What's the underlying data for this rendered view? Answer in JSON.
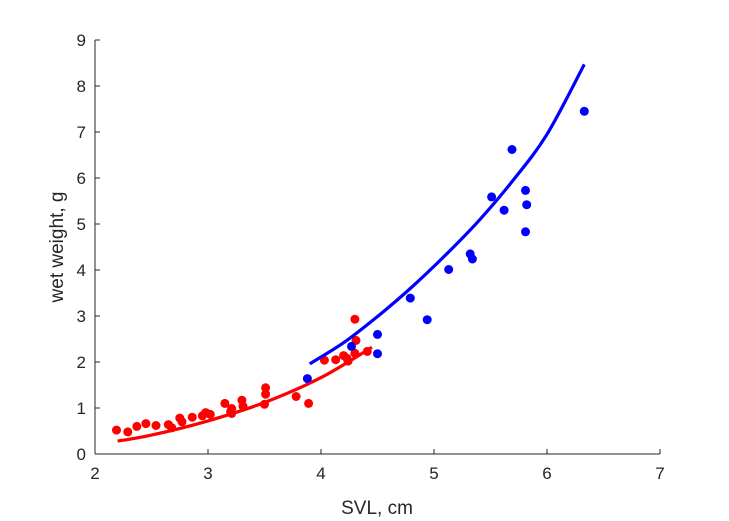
{
  "chart_data": {
    "type": "scatter",
    "title": "",
    "xlabel": "SVL, cm",
    "ylabel": "wet weight, g",
    "xlim": [
      2,
      7
    ],
    "ylim": [
      0,
      9
    ],
    "xticks": [
      "2",
      "3",
      "4",
      "5",
      "6",
      "7"
    ],
    "yticks": [
      "0",
      "1",
      "2",
      "3",
      "4",
      "5",
      "6",
      "7",
      "8",
      "9"
    ],
    "grid": false,
    "legend": "none",
    "series": [
      {
        "color": "#ff0000",
        "points": [
          [
            2.19,
            0.52
          ],
          [
            2.29,
            0.48
          ],
          [
            2.37,
            0.6
          ],
          [
            2.45,
            0.66
          ],
          [
            2.54,
            0.62
          ],
          [
            2.65,
            0.64
          ],
          [
            2.68,
            0.57
          ],
          [
            2.75,
            0.78
          ],
          [
            2.77,
            0.7
          ],
          [
            2.86,
            0.8
          ],
          [
            2.95,
            0.83
          ],
          [
            2.98,
            0.9
          ],
          [
            3.02,
            0.86
          ],
          [
            3.15,
            1.1
          ],
          [
            3.2,
            0.92
          ],
          [
            3.21,
            0.88
          ],
          [
            3.21,
            0.99
          ],
          [
            3.3,
            1.17
          ],
          [
            3.31,
            1.04
          ],
          [
            3.5,
            1.08
          ],
          [
            3.51,
            1.3
          ],
          [
            3.51,
            1.44
          ],
          [
            3.78,
            1.25
          ],
          [
            3.89,
            1.1
          ],
          [
            4.03,
            2.04
          ],
          [
            4.13,
            2.05
          ],
          [
            4.2,
            2.14
          ],
          [
            4.23,
            2.08
          ],
          [
            4.24,
            2.02
          ],
          [
            4.3,
            2.93
          ],
          [
            4.3,
            2.19
          ],
          [
            4.31,
            2.47
          ],
          [
            4.41,
            2.23
          ]
        ],
        "fit": [
          [
            2.2,
            0.28
          ],
          [
            2.5,
            0.41
          ],
          [
            3.0,
            0.72
          ],
          [
            3.5,
            1.12
          ],
          [
            4.0,
            1.66
          ],
          [
            4.45,
            2.32
          ]
        ]
      },
      {
        "color": "#0000ff",
        "points": [
          [
            3.88,
            1.64
          ],
          [
            4.27,
            2.34
          ],
          [
            4.5,
            2.6
          ],
          [
            4.5,
            2.18
          ],
          [
            4.79,
            3.39
          ],
          [
            4.94,
            2.92
          ],
          [
            5.13,
            4.01
          ],
          [
            5.32,
            4.35
          ],
          [
            5.34,
            4.24
          ],
          [
            5.51,
            5.59
          ],
          [
            5.62,
            5.3
          ],
          [
            5.69,
            6.62
          ],
          [
            5.81,
            5.73
          ],
          [
            5.82,
            5.42
          ],
          [
            5.81,
            4.83
          ],
          [
            6.33,
            7.45
          ]
        ],
        "fit": [
          [
            3.9,
            1.96
          ],
          [
            4.2,
            2.42
          ],
          [
            4.5,
            2.99
          ],
          [
            4.8,
            3.62
          ],
          [
            5.1,
            4.32
          ],
          [
            5.4,
            5.08
          ],
          [
            5.7,
            5.95
          ],
          [
            6.0,
            6.95
          ],
          [
            6.33,
            8.47
          ]
        ]
      }
    ]
  }
}
